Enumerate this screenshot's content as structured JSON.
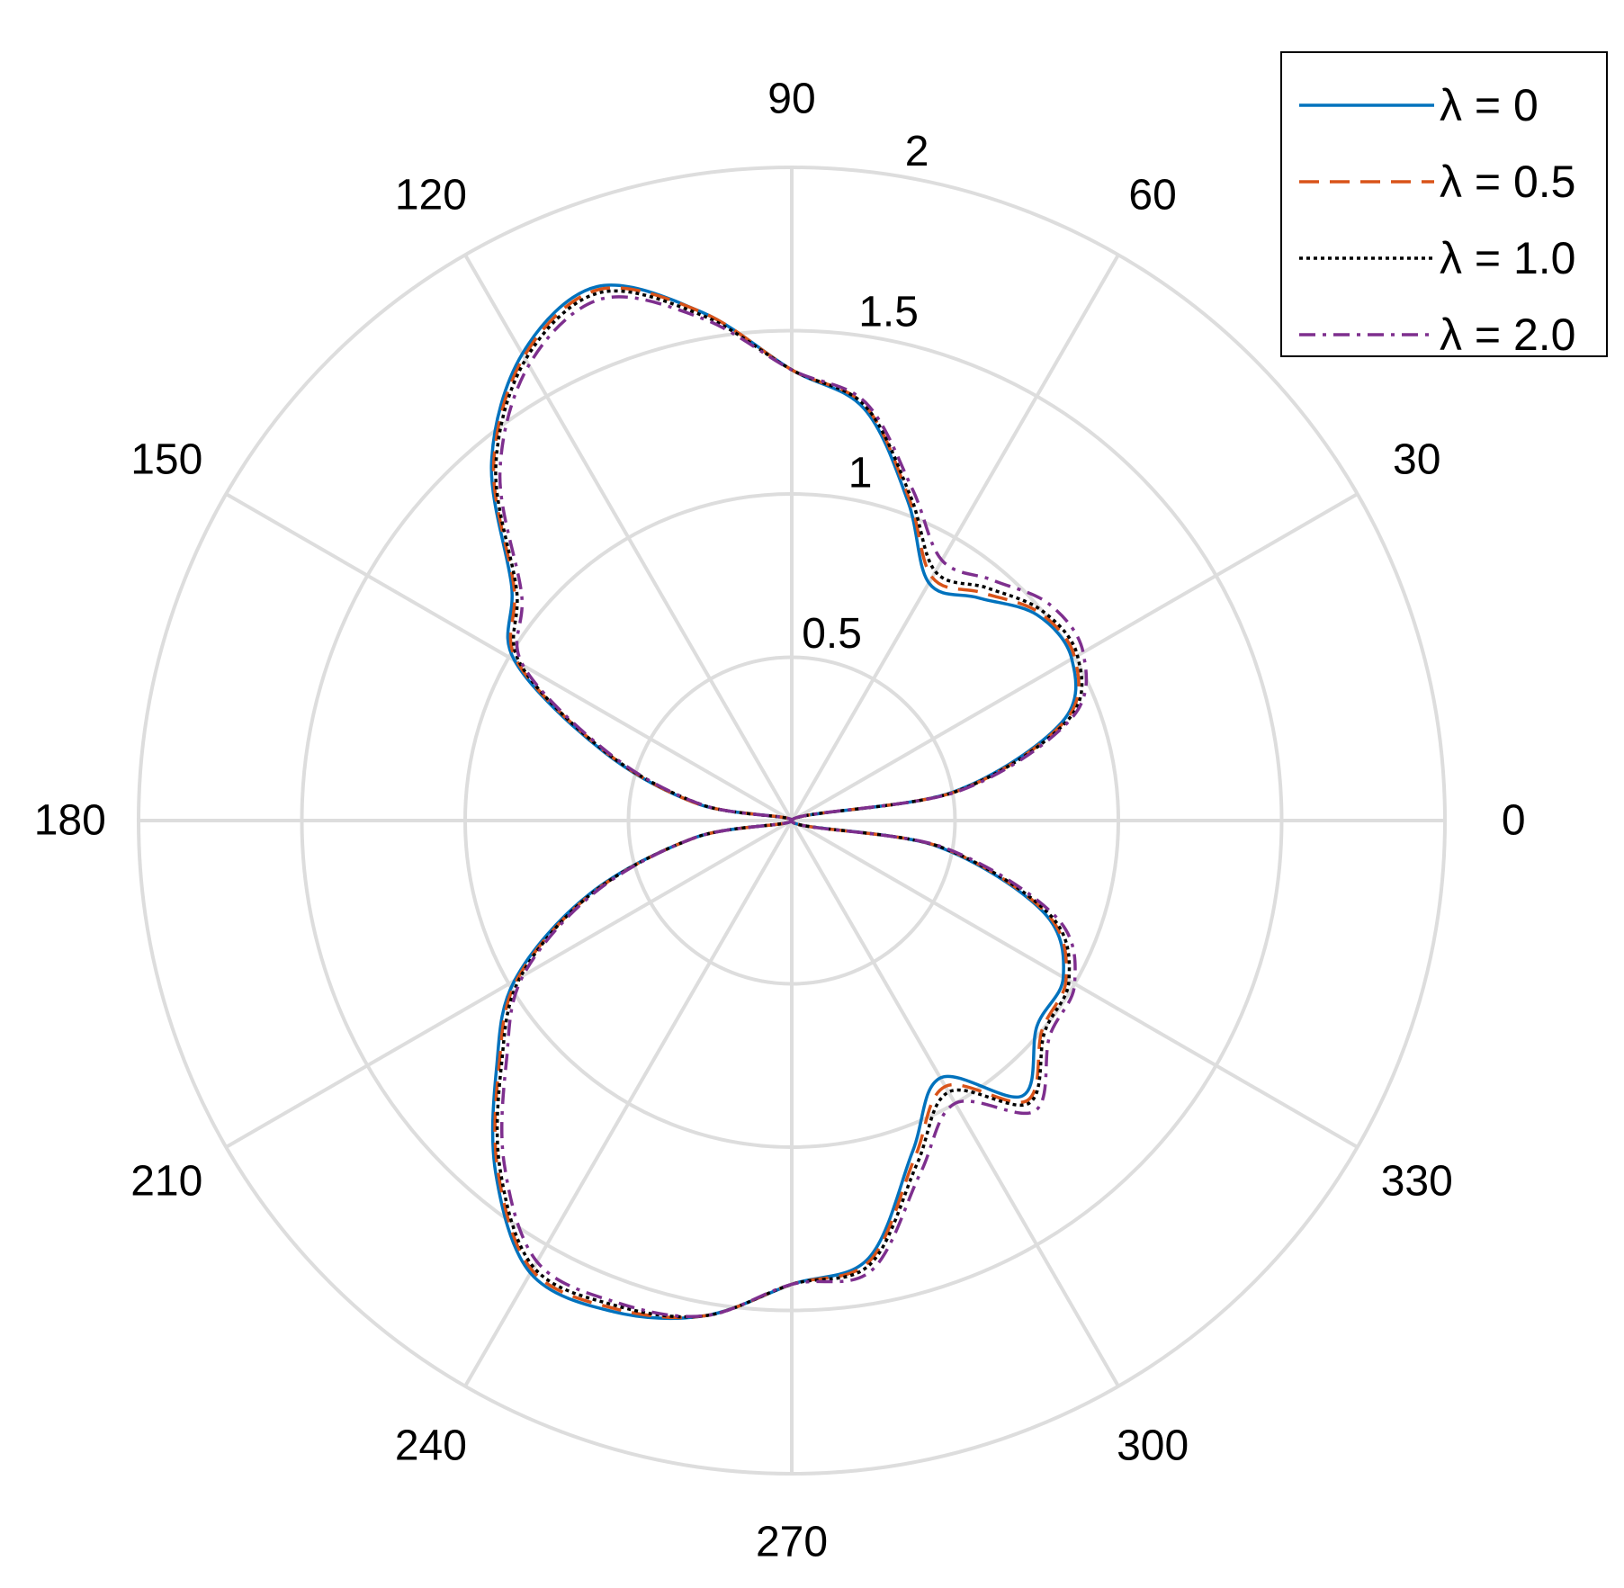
{
  "chart_data": {
    "type": "polar-line",
    "title": "",
    "theta_unit": "degrees",
    "theta_ticks": [
      0,
      30,
      60,
      90,
      120,
      150,
      180,
      210,
      240,
      270,
      300,
      330
    ],
    "theta_tick_labels": [
      "0",
      "30",
      "60",
      "90",
      "120",
      "150",
      "180",
      "210",
      "240",
      "270",
      "300",
      "330"
    ],
    "r_lim": [
      0,
      2
    ],
    "r_ticks": [
      0.5,
      1,
      1.5,
      2
    ],
    "r_tick_labels": [
      "0.5",
      "1",
      "1.5",
      "2"
    ],
    "r_tick_angle_deg": 80,
    "grid": true,
    "grid_color": "#dddddd",
    "legend_position": "top-right",
    "theta": [
      0,
      10,
      20,
      30,
      40,
      50,
      60,
      70,
      80,
      90,
      100,
      110,
      120,
      130,
      140,
      150,
      160,
      170,
      180,
      190,
      200,
      210,
      220,
      230,
      240,
      250,
      260,
      270,
      280,
      290,
      300,
      310,
      320,
      330,
      340,
      350,
      360
    ],
    "series": [
      {
        "name": "λ = 0",
        "color": "#0072bd",
        "dash": "solid",
        "r": [
          0,
          0.5,
          0.88,
          0.99,
          0.98,
          0.89,
          0.84,
          1.04,
          1.28,
          1.38,
          1.58,
          1.74,
          1.65,
          1.43,
          1.12,
          0.98,
          0.61,
          0.29,
          0,
          0.3,
          0.66,
          0.98,
          1.18,
          1.41,
          1.6,
          1.6,
          1.54,
          1.42,
          1.36,
          1.08,
          0.91,
          1.1,
          0.98,
          0.96,
          0.82,
          0.45,
          0
        ]
      },
      {
        "name": "λ = 0.5",
        "color": "#d95319",
        "dash": "dashed",
        "r": [
          0,
          0.51,
          0.89,
          1.0,
          0.99,
          0.91,
          0.86,
          1.05,
          1.29,
          1.38,
          1.58,
          1.73,
          1.64,
          1.42,
          1.11,
          0.97,
          0.6,
          0.29,
          0,
          0.3,
          0.65,
          0.97,
          1.17,
          1.4,
          1.59,
          1.59,
          1.54,
          1.42,
          1.37,
          1.1,
          0.94,
          1.12,
          1.0,
          0.97,
          0.83,
          0.46,
          0
        ]
      },
      {
        "name": "λ = 1.0",
        "color": "#000000",
        "dash": "dotted",
        "r": [
          0,
          0.51,
          0.9,
          1.01,
          1.0,
          0.93,
          0.88,
          1.06,
          1.29,
          1.38,
          1.57,
          1.72,
          1.63,
          1.41,
          1.1,
          0.96,
          0.6,
          0.28,
          0,
          0.3,
          0.65,
          0.96,
          1.16,
          1.39,
          1.58,
          1.58,
          1.54,
          1.42,
          1.38,
          1.12,
          0.96,
          1.13,
          1.01,
          0.98,
          0.84,
          0.46,
          0
        ]
      },
      {
        "name": "λ = 2.0",
        "color": "#7e2f8e",
        "dash": "dashdot",
        "r": [
          0,
          0.52,
          0.91,
          1.03,
          1.03,
          0.96,
          0.92,
          1.08,
          1.3,
          1.38,
          1.56,
          1.7,
          1.61,
          1.39,
          1.08,
          0.95,
          0.59,
          0.28,
          0,
          0.3,
          0.64,
          0.95,
          1.14,
          1.37,
          1.56,
          1.57,
          1.54,
          1.42,
          1.4,
          1.15,
          1.0,
          1.16,
          1.03,
          1.0,
          0.86,
          0.47,
          0
        ]
      }
    ]
  }
}
